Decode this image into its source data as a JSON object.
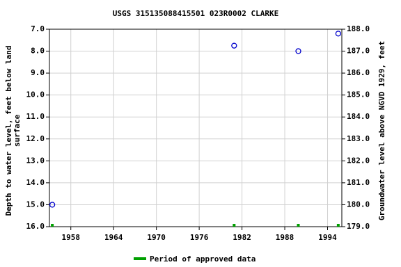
{
  "chart_data": {
    "type": "scatter",
    "title": "USGS 315135088415501 023R0002  CLARKE",
    "ylabel": [
      "Depth to water level, feet below land",
      "surface"
    ],
    "y2label": "Groundwater level above NGVD 1929, feet",
    "x": [
      1955.4,
      1980.9,
      1989.9,
      1995.5
    ],
    "values": [
      15.0,
      7.75,
      8.0,
      7.2
    ],
    "color": "#0000cc",
    "series": [
      {
        "name": "Period of approved data",
        "color": "#00a000",
        "x": [
          1955.4,
          1980.9,
          1989.9,
          1995.5
        ]
      }
    ],
    "xlim": [
      1955,
      1996
    ],
    "xticks": [
      1958,
      1964,
      1970,
      1976,
      1982,
      1988,
      1994
    ],
    "ylim": [
      16,
      7
    ],
    "yticks": [
      {
        "value": 7,
        "label": "7.0"
      },
      {
        "value": 8,
        "label": "8.0"
      },
      {
        "value": 9,
        "label": "9.0"
      },
      {
        "value": 10,
        "label": "10.0"
      },
      {
        "value": 11,
        "label": "11.0"
      },
      {
        "value": 12,
        "label": "12.0"
      },
      {
        "value": 13,
        "label": "13.0"
      },
      {
        "value": 14,
        "label": "14.0"
      },
      {
        "value": 15,
        "label": "15.0"
      },
      {
        "value": 16,
        "label": "16.0"
      }
    ],
    "y2lim": [
      179,
      188
    ],
    "y2ticks": [
      {
        "value": 188,
        "label": "188.0"
      },
      {
        "value": 187,
        "label": "187.0"
      },
      {
        "value": 186,
        "label": "186.0"
      },
      {
        "value": 185,
        "label": "185.0"
      },
      {
        "value": 184,
        "label": "184.0"
      },
      {
        "value": 183,
        "label": "183.0"
      },
      {
        "value": 182,
        "label": "182.0"
      },
      {
        "value": 181,
        "label": "181.0"
      },
      {
        "value": 180,
        "label": "180.0"
      },
      {
        "value": 179,
        "label": "179.0"
      }
    ],
    "grid": true
  }
}
